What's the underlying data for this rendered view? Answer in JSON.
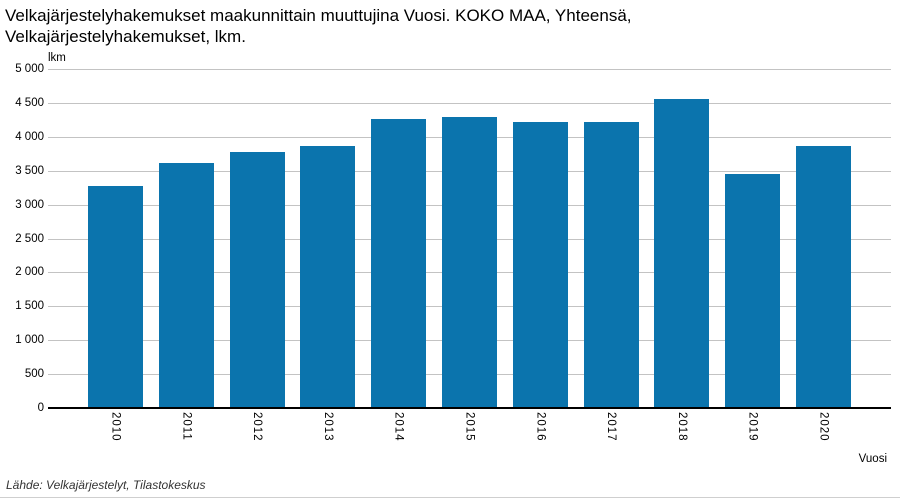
{
  "title": "Velkajärjestelyhakemukset maakunnittain muuttujina Vuosi. KOKO MAA, Yhteensä, Velkajärjestelyhakemukset, lkm.",
  "y_axis": {
    "unit_label": "lkm",
    "ticks": [
      {
        "value": 5000,
        "label": "5 000"
      },
      {
        "value": 4500,
        "label": "4 500"
      },
      {
        "value": 4000,
        "label": "4 000"
      },
      {
        "value": 3500,
        "label": "3 500"
      },
      {
        "value": 3000,
        "label": "3 000"
      },
      {
        "value": 2500,
        "label": "2 500"
      },
      {
        "value": 2000,
        "label": "2 000"
      },
      {
        "value": 1500,
        "label": "1 500"
      },
      {
        "value": 1000,
        "label": "1 000"
      },
      {
        "value": 500,
        "label": "500"
      },
      {
        "value": 0,
        "label": "0"
      }
    ]
  },
  "x_axis": {
    "label": "Vuosi"
  },
  "footer": "Lähde: Velkajärjestelyt, Tilastokeskus",
  "colors": {
    "bar": "#0b74ad",
    "grid": "#c3c3c3",
    "axis": "#000000"
  },
  "chart_data": {
    "type": "bar",
    "title": "Velkajärjestelyhakemukset maakunnittain muuttujina Vuosi. KOKO MAA, Yhteensä, Velkajärjestelyhakemukset, lkm.",
    "categories": [
      "2010",
      "2011",
      "2012",
      "2013",
      "2014",
      "2015",
      "2016",
      "2017",
      "2018",
      "2019",
      "2020"
    ],
    "values": [
      3270,
      3620,
      3780,
      3870,
      4260,
      4290,
      4220,
      4220,
      4560,
      3450,
      3870
    ],
    "xlabel": "Vuosi",
    "ylabel": "lkm",
    "ylim": [
      0,
      5000
    ],
    "grid": true,
    "legend": false
  }
}
